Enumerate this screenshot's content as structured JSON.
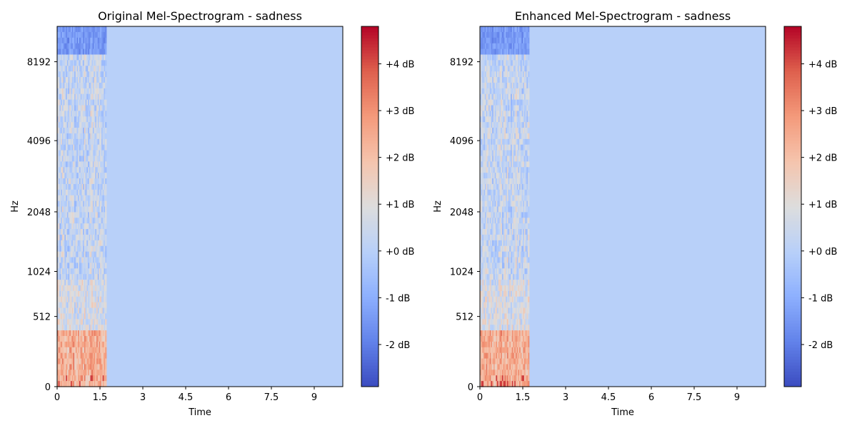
{
  "chart_data": [
    {
      "type": "heatmap",
      "title": "Original Mel-Spectrogram - sadness",
      "xlabel": "Time",
      "ylabel": "Hz",
      "xlim": [
        0,
        10.0
      ],
      "x_ticks": [
        "0",
        "1.5",
        "3",
        "4.5",
        "6",
        "7.5",
        "9"
      ],
      "x_tick_values": [
        0,
        1.5,
        3,
        4.5,
        6,
        7.5,
        9
      ],
      "y_scale": "mel",
      "y_ticks": [
        "0",
        "512",
        "1024",
        "2048",
        "4096",
        "8192"
      ],
      "y_tick_values": [
        0,
        512,
        1024,
        2048,
        4096,
        8192
      ],
      "ylim": [
        0,
        11025
      ],
      "signal_end_time": 1.72,
      "background_value_db": 0.0,
      "colorbar": {
        "colormap": "coolwarm",
        "range": [
          -2.9,
          4.8
        ],
        "tick_labels": [
          "+4 dB",
          "+3 dB",
          "+2 dB",
          "+1 dB",
          "+0 dB",
          "-1 dB",
          "-2 dB"
        ],
        "tick_values": [
          4,
          3,
          2,
          1,
          0,
          -1,
          -2
        ]
      }
    },
    {
      "type": "heatmap",
      "title": "Enhanced Mel-Spectrogram - sadness",
      "xlabel": "Time",
      "ylabel": "Hz",
      "xlim": [
        0,
        10.0
      ],
      "x_ticks": [
        "0",
        "1.5",
        "3",
        "4.5",
        "6",
        "7.5",
        "9"
      ],
      "x_tick_values": [
        0,
        1.5,
        3,
        4.5,
        6,
        7.5,
        9
      ],
      "y_scale": "mel",
      "y_ticks": [
        "0",
        "512",
        "1024",
        "2048",
        "4096",
        "8192"
      ],
      "y_tick_values": [
        0,
        512,
        1024,
        2048,
        4096,
        8192
      ],
      "ylim": [
        0,
        11025
      ],
      "signal_end_time": 1.72,
      "background_value_db": 0.0,
      "colorbar": {
        "colormap": "coolwarm",
        "range": [
          -2.9,
          4.8
        ],
        "tick_labels": [
          "+4 dB",
          "+3 dB",
          "+2 dB",
          "+1 dB",
          "+0 dB",
          "-1 dB",
          "-2 dB"
        ],
        "tick_values": [
          4,
          3,
          2,
          1,
          0,
          -1,
          -2
        ]
      }
    }
  ]
}
